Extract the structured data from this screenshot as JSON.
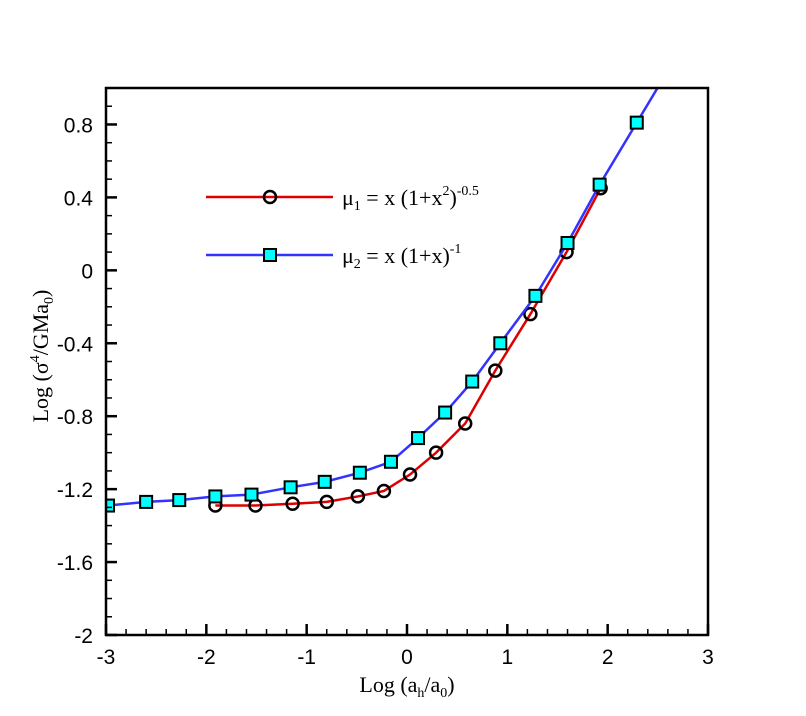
{
  "chart_data": {
    "type": "line",
    "xlabel": {
      "pre": "Log (a",
      "sub1": "h",
      "mid": "/a",
      "sub2": "0",
      "post": ")"
    },
    "ylabel": {
      "pre": "Log (σ",
      "sup": "4",
      "mid": "/GMa",
      "sub": "0",
      "post": ")"
    },
    "xlim": [
      -3,
      3
    ],
    "ylim": [
      -2,
      1
    ],
    "xticks": [
      "-3",
      "-2",
      "-1",
      "0",
      "1",
      "2",
      "3"
    ],
    "yticks": [
      "-2",
      "-1.6",
      "-1.2",
      "-0.8",
      "-0.4",
      "0",
      "0.4",
      "0.8"
    ],
    "grid": false,
    "legend_position": "upper-left-center",
    "series": [
      {
        "name": {
          "base": "μ",
          "sub": "1",
          "eq": " = x (1+x",
          "sup1": "2",
          "close": ")",
          "sup2": "-0.5"
        },
        "color": "#dd0000",
        "marker": "circle",
        "x": [
          -1.91,
          -1.51,
          -1.14,
          -0.8,
          -0.49,
          -0.23,
          0.03,
          0.29,
          0.58,
          0.88,
          1.23,
          1.59,
          1.93
        ],
        "y": [
          -1.29,
          -1.29,
          -1.28,
          -1.27,
          -1.24,
          -1.21,
          -1.12,
          -1.0,
          -0.84,
          -0.55,
          -0.24,
          0.1,
          0.45
        ]
      },
      {
        "name": {
          "base": "μ",
          "sub": "2",
          "eq": " = x (1+x",
          "sup1": "",
          "close": ")",
          "sup2": "-1"
        },
        "color": "#3333ff",
        "marker": "square",
        "marker_fill": "#00ffff",
        "x": [
          -2.98,
          -2.6,
          -2.27,
          -1.91,
          -1.55,
          -1.16,
          -0.82,
          -0.47,
          -0.16,
          0.11,
          0.38,
          0.65,
          0.93,
          1.28,
          1.6,
          1.92,
          2.29
        ],
        "y": [
          -1.29,
          -1.27,
          -1.26,
          -1.24,
          -1.23,
          -1.19,
          -1.16,
          -1.11,
          -1.05,
          -0.92,
          -0.78,
          -0.61,
          -0.4,
          -0.14,
          0.15,
          0.47,
          0.81
        ]
      }
    ]
  }
}
